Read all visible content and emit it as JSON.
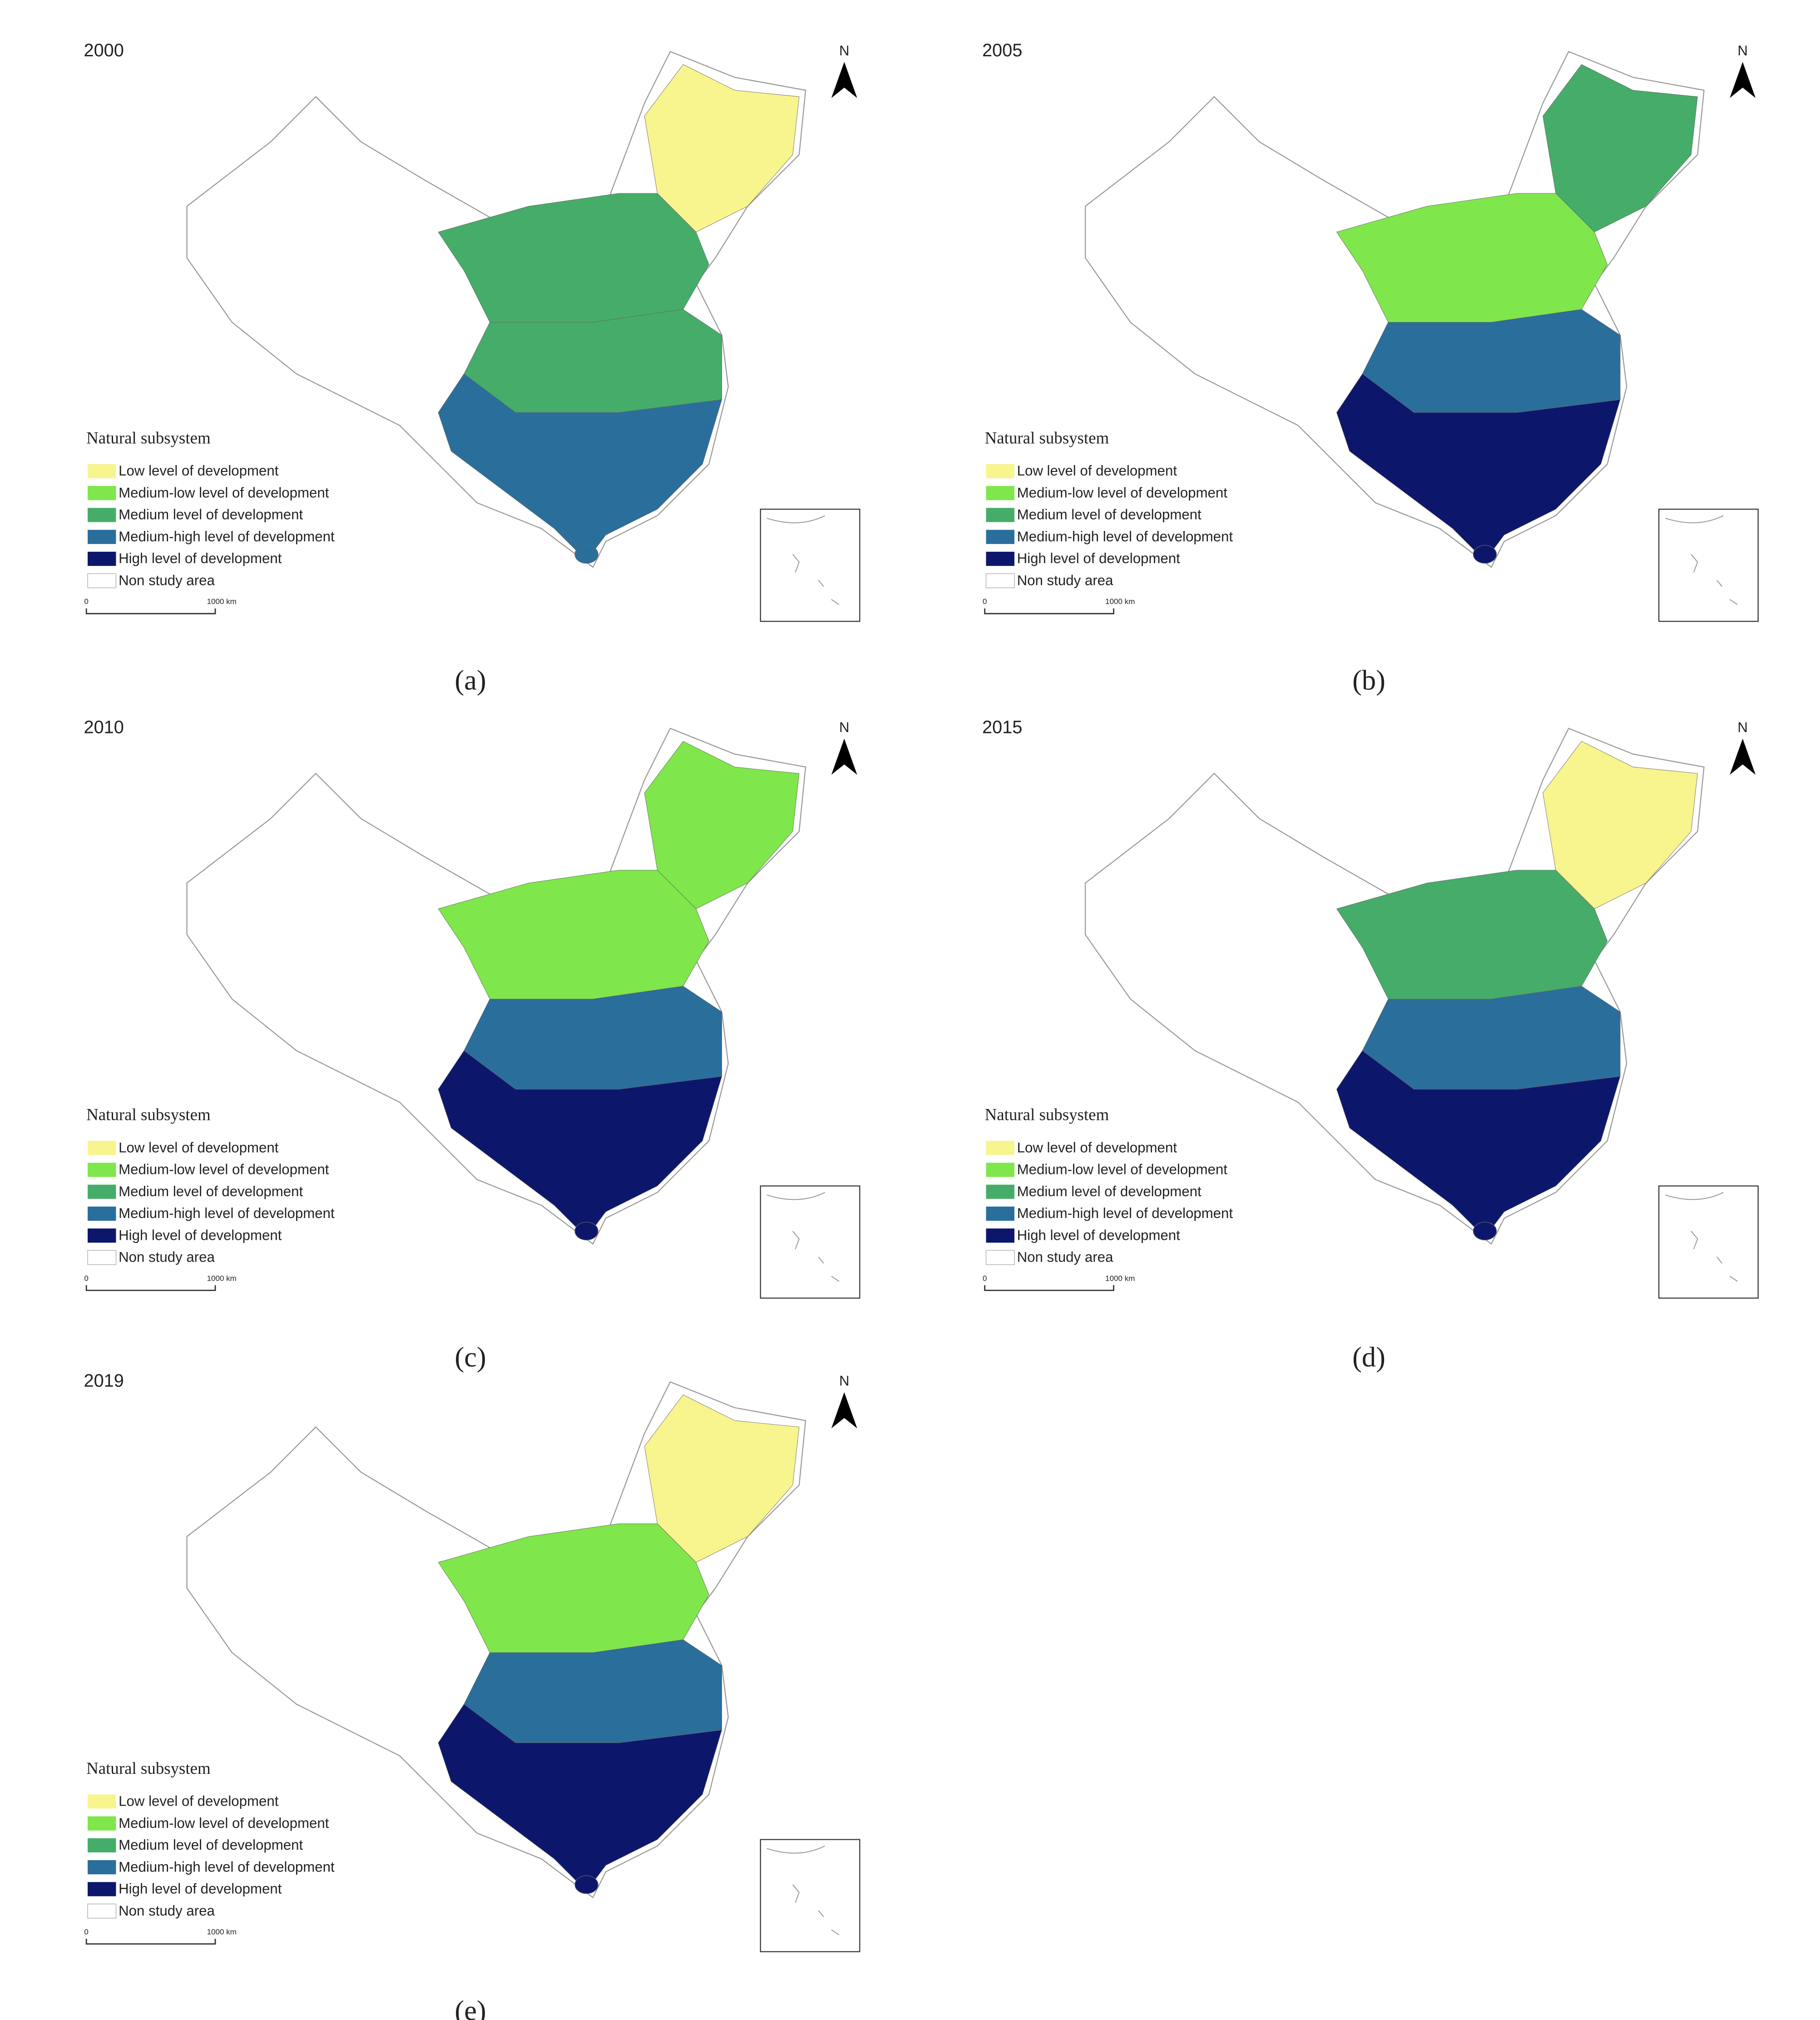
{
  "north": "N",
  "legend": {
    "title": "Natural subsystem",
    "items": [
      {
        "label": "Low level of development",
        "color": "#f8f48e"
      },
      {
        "label": "Medium-low level of development",
        "color": "#7fe64b"
      },
      {
        "label": "Medium level of development",
        "color": "#45ad69"
      },
      {
        "label": "Medium-high level of development",
        "color": "#2a6e9c"
      },
      {
        "label": "High level of development",
        "color": "#0c176c"
      },
      {
        "label": "Non study area",
        "color": "#ffffff"
      }
    ]
  },
  "scale": {
    "start": "0",
    "end": "1000 km"
  },
  "panels": [
    {
      "year": "2000",
      "caption": "(a)"
    },
    {
      "year": "2005",
      "caption": "(b)"
    },
    {
      "year": "2010",
      "caption": "(c)"
    },
    {
      "year": "2015",
      "caption": "(d)"
    },
    {
      "year": "2019",
      "caption": "(e)"
    }
  ]
}
